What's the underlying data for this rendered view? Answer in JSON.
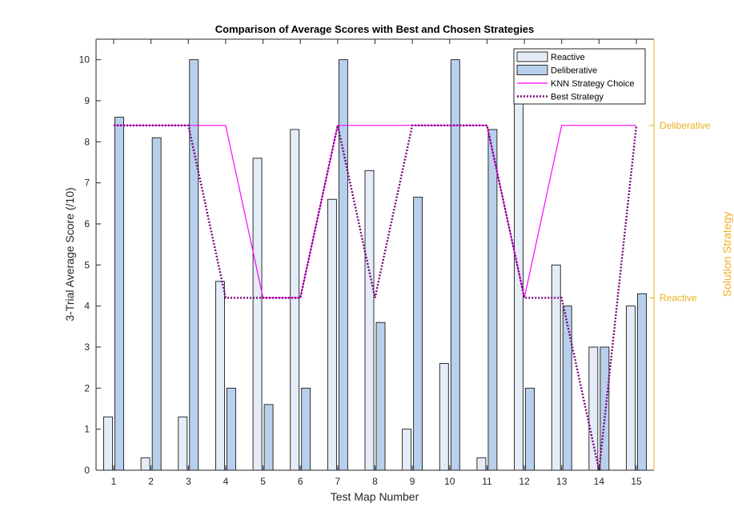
{
  "chart_data": {
    "type": "bar",
    "title": "Comparison of Average Scores with Best and Chosen Strategies",
    "xlabel": "Test Map Number",
    "ylabel": "3-Trial Average Score (/10)",
    "y2label": "Solution Strategy",
    "categories": [
      "1",
      "2",
      "3",
      "4",
      "5",
      "6",
      "7",
      "8",
      "9",
      "10",
      "11",
      "12",
      "13",
      "14",
      "15"
    ],
    "ylim": [
      0,
      10.5
    ],
    "yticks": [
      "0",
      "1",
      "2",
      "3",
      "4",
      "5",
      "6",
      "7",
      "8",
      "9",
      "10"
    ],
    "y2ticks": [
      {
        "label": "Reactive",
        "value": 4.2
      },
      {
        "label": "Deliberative",
        "value": 8.4
      }
    ],
    "series": [
      {
        "name": "Reactive",
        "kind": "bar",
        "color": "#e3ecf7",
        "values": [
          1.3,
          0.3,
          1.3,
          4.6,
          7.6,
          8.3,
          6.6,
          7.3,
          1.0,
          2.6,
          0.3,
          9.1,
          5.0,
          3.0,
          4.0
        ]
      },
      {
        "name": "Deliberative",
        "kind": "bar",
        "color": "#b8d0ec",
        "values": [
          8.6,
          8.1,
          10.0,
          2.0,
          1.6,
          2.0,
          10.0,
          3.6,
          6.65,
          10.0,
          8.3,
          2.0,
          4.0,
          3.0,
          4.3
        ]
      },
      {
        "name": "KNN Strategy Choice",
        "kind": "line",
        "color": "#ff00ff",
        "values": [
          8.4,
          8.4,
          8.4,
          8.4,
          4.2,
          4.2,
          8.4,
          8.4,
          8.4,
          8.4,
          8.4,
          4.2,
          8.4,
          8.4,
          8.4
        ]
      },
      {
        "name": "Best Strategy",
        "kind": "dotted-line",
        "color": "#7a007a",
        "values": [
          8.4,
          8.4,
          8.4,
          4.2,
          4.2,
          4.2,
          8.4,
          4.2,
          8.4,
          8.4,
          8.4,
          4.2,
          4.2,
          0,
          8.4
        ]
      }
    ],
    "legend_position": "top-right",
    "grid": false,
    "colors": {
      "axis": "#262626",
      "right_axis": "#edb120",
      "plot_bg": "#ffffff"
    }
  }
}
